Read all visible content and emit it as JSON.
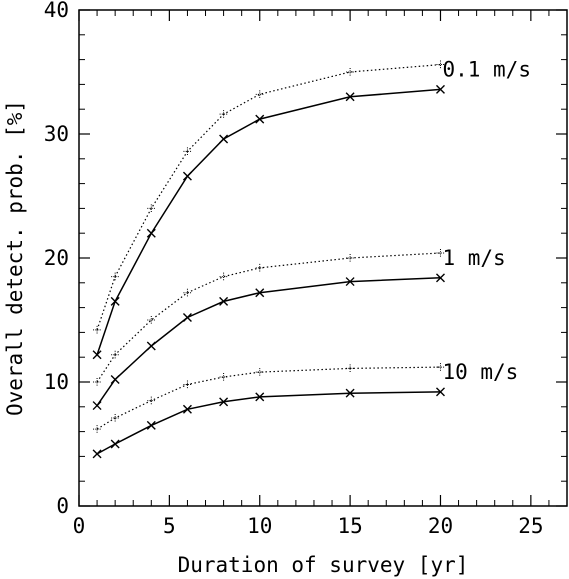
{
  "chart_data": {
    "type": "line",
    "xlabel": "Duration of survey [yr]",
    "ylabel": "Overall detect. prob. [%]",
    "xlim": [
      0,
      27
    ],
    "ylim": [
      0,
      40
    ],
    "xticks": [
      0,
      5,
      10,
      15,
      20,
      25
    ],
    "yticks": [
      0,
      10,
      20,
      30,
      40
    ],
    "x": [
      1,
      2,
      4,
      6,
      8,
      10,
      15,
      20
    ],
    "series": [
      {
        "name": "0.1 m/s",
        "style": "solid",
        "marker": "x",
        "values": [
          12.2,
          16.5,
          22.0,
          26.6,
          29.6,
          31.2,
          33.0,
          33.6
        ]
      },
      {
        "name": "0.1 m/s",
        "style": "dotted",
        "marker": "+",
        "values": [
          14.2,
          18.5,
          24.0,
          28.6,
          31.6,
          33.2,
          35.0,
          35.6
        ]
      },
      {
        "name": "1 m/s",
        "style": "solid",
        "marker": "x",
        "values": [
          8.1,
          10.2,
          12.9,
          15.2,
          16.5,
          17.2,
          18.1,
          18.4
        ]
      },
      {
        "name": "1 m/s",
        "style": "dotted",
        "marker": "+",
        "values": [
          10.0,
          12.2,
          15.0,
          17.2,
          18.5,
          19.2,
          20.0,
          20.4
        ]
      },
      {
        "name": "10 m/s",
        "style": "solid",
        "marker": "x",
        "values": [
          4.2,
          5.0,
          6.5,
          7.8,
          8.4,
          8.8,
          9.1,
          9.2
        ]
      },
      {
        "name": "10 m/s",
        "style": "dotted",
        "marker": "+",
        "values": [
          6.2,
          7.1,
          8.5,
          9.8,
          10.4,
          10.8,
          11.1,
          11.2
        ]
      }
    ],
    "annotations": [
      "0.1 m/s",
      "1 m/s",
      "10 m/s"
    ],
    "grid": false,
    "legend": "none"
  }
}
